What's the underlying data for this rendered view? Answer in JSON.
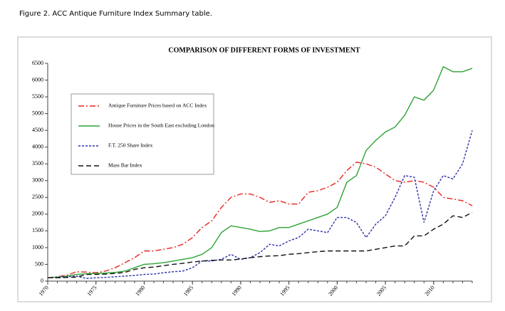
{
  "caption": "Figure 2. ACC Antique Furniture Index Summary table.",
  "chart_data": {
    "type": "line",
    "title": "COMPARISON OF DIFFERENT FORMS OF  INVESTMENT",
    "x": [
      1970,
      1971,
      1972,
      1973,
      1974,
      1975,
      1976,
      1977,
      1978,
      1979,
      1980,
      1981,
      1982,
      1983,
      1984,
      1985,
      1986,
      1987,
      1988,
      1989,
      1990,
      1991,
      1992,
      1993,
      1994,
      1995,
      1996,
      1997,
      1998,
      1999,
      2000,
      2001,
      2002,
      2003,
      2004,
      2005,
      2006,
      2007,
      2008,
      2009,
      2010,
      2011,
      2012,
      2013,
      2014
    ],
    "xlim": [
      1970,
      2014
    ],
    "xticks": [
      1970,
      1975,
      1980,
      1985,
      1990,
      1995,
      2000,
      2005,
      2010
    ],
    "ylim": [
      0,
      6500
    ],
    "yticks": [
      0,
      500,
      1000,
      1500,
      2000,
      2500,
      3000,
      3500,
      4000,
      4500,
      5000,
      5500,
      6000,
      6500
    ],
    "grid": false,
    "legend": "upper left",
    "series": [
      {
        "name": "Antique Furniture Prices based on ACC Index",
        "color": "#e8251f",
        "dash": "8,3,2,3",
        "values": [
          100,
          130,
          180,
          280,
          270,
          250,
          300,
          400,
          550,
          700,
          900,
          900,
          950,
          1000,
          1100,
          1300,
          1600,
          1800,
          2200,
          2500,
          2600,
          2600,
          2500,
          2350,
          2400,
          2300,
          2300,
          2650,
          2700,
          2800,
          2950,
          3300,
          3550,
          3500,
          3400,
          3200,
          3000,
          2950,
          3000,
          2950,
          2800,
          2500,
          2450,
          2400,
          2250
        ]
      },
      {
        "name": "House Prices in the South East excluding London",
        "color": "#2ea335",
        "dash": "none",
        "values": [
          100,
          120,
          150,
          200,
          220,
          230,
          240,
          260,
          300,
          400,
          500,
          520,
          550,
          600,
          650,
          700,
          800,
          1000,
          1450,
          1650,
          1600,
          1550,
          1480,
          1500,
          1600,
          1600,
          1700,
          1800,
          1900,
          2000,
          2200,
          2950,
          3150,
          3900,
          4200,
          4450,
          4600,
          4950,
          5500,
          5400,
          5700,
          6400,
          6250,
          6250,
          6350
        ]
      },
      {
        "name": "F.T. 250 Share Index",
        "color": "#2b2fa8",
        "dash": "3,2",
        "values": [
          100,
          110,
          130,
          150,
          80,
          100,
          110,
          130,
          150,
          170,
          200,
          210,
          250,
          280,
          300,
          400,
          600,
          600,
          650,
          800,
          650,
          700,
          850,
          1100,
          1050,
          1200,
          1300,
          1550,
          1500,
          1450,
          1900,
          1900,
          1750,
          1300,
          1700,
          1950,
          2500,
          3150,
          3100,
          1750,
          2700,
          3150,
          3050,
          3500,
          4500
        ]
      },
      {
        "name": "Mass Bar Index",
        "color": "#111111",
        "dash": "7,4",
        "values": [
          100,
          100,
          110,
          120,
          200,
          200,
          210,
          230,
          260,
          350,
          400,
          420,
          460,
          500,
          530,
          570,
          600,
          620,
          630,
          630,
          660,
          700,
          730,
          750,
          760,
          800,
          820,
          850,
          880,
          900,
          900,
          900,
          900,
          900,
          950,
          1000,
          1050,
          1050,
          1350,
          1350,
          1550,
          1700,
          1950,
          1900,
          2050
        ]
      }
    ]
  }
}
